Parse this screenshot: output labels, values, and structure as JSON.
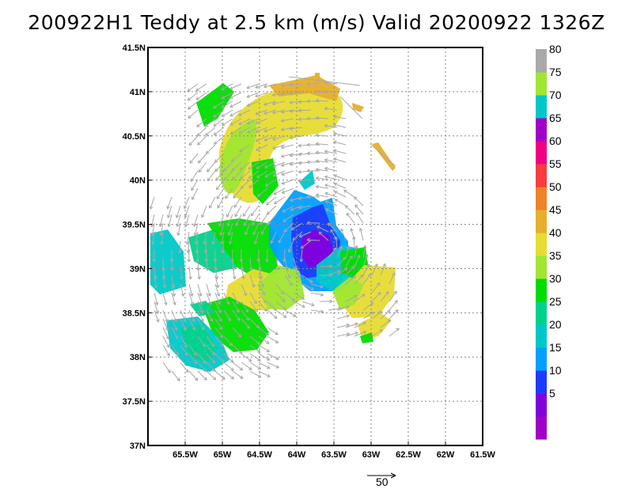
{
  "title": "200922H1 Teddy at 2.5 km (m/s) Valid 20200922 1326Z",
  "map": {
    "lon_range": [
      -66.0,
      -61.5
    ],
    "lat_range": [
      37.0,
      41.5
    ],
    "x_ticks": [
      {
        "lon": -65.5,
        "label": "65.5W"
      },
      {
        "lon": -65.0,
        "label": "65W"
      },
      {
        "lon": -64.5,
        "label": "64.5W"
      },
      {
        "lon": -64.0,
        "label": "64W"
      },
      {
        "lon": -63.5,
        "label": "63.5W"
      },
      {
        "lon": -63.0,
        "label": "63W"
      },
      {
        "lon": -62.5,
        "label": "62.5W"
      },
      {
        "lon": -62.0,
        "label": "62W"
      },
      {
        "lon": -61.5,
        "label": "61.5W"
      }
    ],
    "y_ticks": [
      {
        "lat": 41.5,
        "label": "41.5N"
      },
      {
        "lat": 41.0,
        "label": "41N"
      },
      {
        "lat": 40.5,
        "label": "40.5N"
      },
      {
        "lat": 40.0,
        "label": "40N"
      },
      {
        "lat": 39.5,
        "label": "39.5N"
      },
      {
        "lat": 39.0,
        "label": "39N"
      },
      {
        "lat": 38.5,
        "label": "38.5N"
      },
      {
        "lat": 38.0,
        "label": "38N"
      },
      {
        "lat": 37.5,
        "label": "37.5N"
      },
      {
        "lat": 37.0,
        "label": "37N"
      }
    ],
    "grid": "dotted"
  },
  "colorbar": {
    "levels": [
      {
        "label": "",
        "color": "#a000c8"
      },
      {
        "label": "5",
        "color": "#8200dc"
      },
      {
        "label": "10",
        "color": "#1e3cff"
      },
      {
        "label": "15",
        "color": "#00a0ff"
      },
      {
        "label": "20",
        "color": "#00c8c8"
      },
      {
        "label": "25",
        "color": "#00d28c"
      },
      {
        "label": "30",
        "color": "#00dc00"
      },
      {
        "label": "35",
        "color": "#a0e632"
      },
      {
        "label": "40",
        "color": "#e6dc32"
      },
      {
        "label": "45",
        "color": "#e6af2d"
      },
      {
        "label": "50",
        "color": "#f08228"
      },
      {
        "label": "55",
        "color": "#fa3c3c"
      },
      {
        "label": "60",
        "color": "#f00082"
      },
      {
        "label": "65",
        "color": "#a000c8"
      },
      {
        "label": "70",
        "color": "#00c8c8"
      },
      {
        "label": "75",
        "color": "#a0e632"
      },
      {
        "label": "80",
        "color": "#aaaaaa"
      }
    ]
  },
  "reference_vector": {
    "label": "50"
  },
  "center": {
    "lon": -63.7,
    "lat": 39.2
  },
  "vector_color": "#a8a8a8"
}
